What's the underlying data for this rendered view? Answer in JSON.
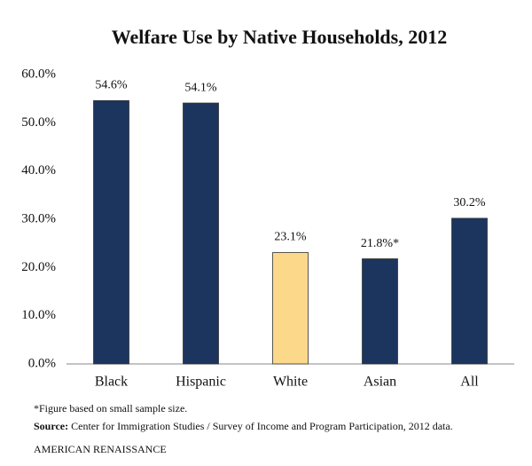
{
  "chart_data": {
    "type": "bar",
    "title": "Welfare Use by Native Households, 2012",
    "categories": [
      "Black",
      "Hispanic",
      "White",
      "Asian",
      "All"
    ],
    "values": [
      54.6,
      54.1,
      23.1,
      21.8,
      30.2
    ],
    "value_labels": [
      "54.6%",
      "54.1%",
      "23.1%",
      "21.8%*",
      "30.2%"
    ],
    "colors": [
      "#1c355e",
      "#1c355e",
      "#fcd88a",
      "#1c355e",
      "#1c355e"
    ],
    "ylim": [
      0,
      60
    ],
    "yticks": [
      {
        "value": 0,
        "label": "0.0%"
      },
      {
        "value": 10,
        "label": "10.0%"
      },
      {
        "value": 20,
        "label": "20.0%"
      },
      {
        "value": 30,
        "label": "30.0%"
      },
      {
        "value": 40,
        "label": "40.0%"
      },
      {
        "value": 50,
        "label": "50.0%"
      },
      {
        "value": 60,
        "label": "60.0%"
      }
    ],
    "grid": false,
    "note": "*Figure based on small sample size.",
    "source_label": "Source:",
    "source": "Center for Immigration Studies / Survey of Income and Program Participation, 2012 data.",
    "credit": "AMERICAN RENAISSANCE"
  }
}
